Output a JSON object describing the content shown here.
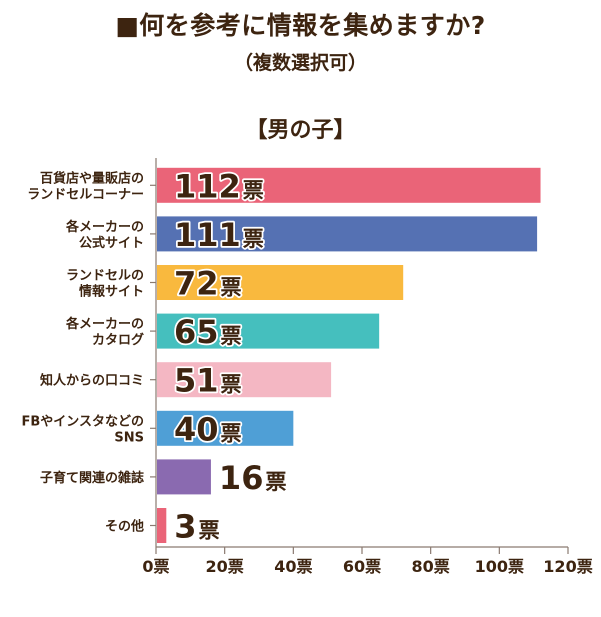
{
  "header": {
    "title": "■何を参考に情報を集めますか?",
    "subtitle": "（複数選択可）",
    "group": "【男の子】"
  },
  "chart_data": {
    "type": "bar",
    "orientation": "horizontal",
    "title": "■何を参考に情報を集めますか?",
    "subtitle": "（複数選択可）",
    "group_label": "【男の子】",
    "unit": "票",
    "categories": [
      [
        "百貨店や量販店の",
        "ランドセルコーナー"
      ],
      [
        "各メーカーの",
        "公式サイト"
      ],
      [
        "ランドセルの",
        "情報サイト"
      ],
      [
        "各メーカーの",
        "カタログ"
      ],
      [
        "知人からの口コミ"
      ],
      [
        "FBやインスタなどの",
        "SNS"
      ],
      [
        "子育て関連の雑誌"
      ],
      [
        "その他"
      ]
    ],
    "values": [
      112,
      111,
      72,
      65,
      51,
      40,
      16,
      3
    ],
    "value_labels": [
      "112",
      "111",
      "72",
      "65",
      "51",
      "40",
      "16",
      "3"
    ],
    "bar_colors": [
      "#ea6478",
      "#5571b3",
      "#f9b93e",
      "#45bfbe",
      "#f4b7c3",
      "#4f9fd6",
      "#8a6ab0",
      "#ea6478"
    ],
    "xlim": [
      0,
      120
    ],
    "xticks": [
      0,
      20,
      40,
      60,
      80,
      100,
      120
    ],
    "xtick_labels": [
      "0票",
      "20票",
      "40票",
      "60票",
      "80票",
      "100票",
      "120票"
    ],
    "text_color": "#3d2410",
    "axis_color": "#8a7a70",
    "grid": false
  }
}
